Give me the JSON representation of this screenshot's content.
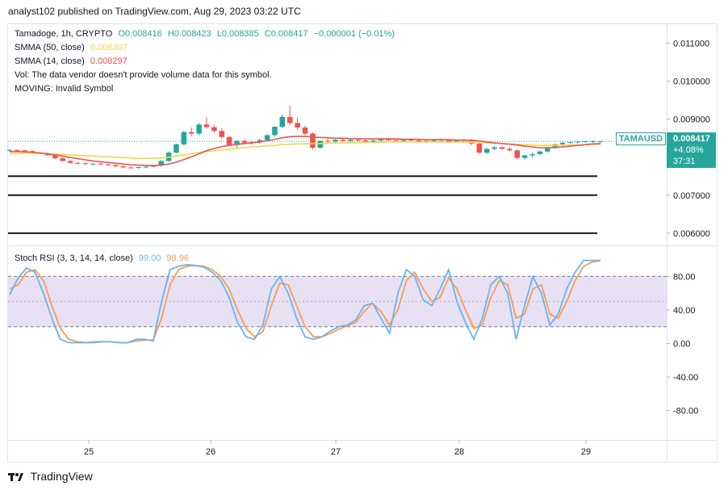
{
  "header": {
    "publisher_text": "analyst102 published on TradingView.com, Aug 29, 2023 03:22 UTC"
  },
  "legend": {
    "symbol_line": {
      "title": "Tamadoge, 1h, CRYPTO",
      "open": "O0.008416",
      "high": "H0.008423",
      "low": "L0.008385",
      "close": "C0.008417",
      "change": "−0.000001 (−0.01%)"
    },
    "sma50": {
      "label": "SMMA (50, close)",
      "value": "0.008307",
      "color": "#f2d64b"
    },
    "sma14": {
      "label": "SMMA (14, close)",
      "value": "0.008297",
      "color": "#ef5350"
    },
    "vol": "Vol: The data vendor doesn't provide volume data for this symbol.",
    "moving": "MOVING: Invalid Symbol",
    "stoch": {
      "label": "Stoch RSI (3, 3, 14, 14, close)",
      "k_value": "99.00",
      "d_value": "98.96",
      "k_color": "#64b5f6",
      "d_color": "#ff9a4d"
    }
  },
  "price_tag": {
    "symbol": "TAMAUSD",
    "price": "0.008417",
    "change": "+4.08%",
    "countdown": "37:31",
    "color": "#26a69a"
  },
  "footer": {
    "brand": "TradingView"
  },
  "chart_data": [
    {
      "type": "candlestick",
      "title": "Tamadoge, 1h, CRYPTO",
      "y_axis_ticks": [
        "0.011000",
        "0.010000",
        "0.009000",
        "0.007000",
        "0.006000"
      ],
      "ylim": [
        0.0057,
        0.0115
      ],
      "x_axis_ticks": [
        "25",
        "26",
        "27",
        "28",
        "29"
      ],
      "candles": [
        [
          0.00818,
          0.00822,
          0.00814,
          0.00819
        ],
        [
          0.00819,
          0.00821,
          0.00816,
          0.00818
        ],
        [
          0.00818,
          0.0082,
          0.00815,
          0.00816
        ],
        [
          0.00816,
          0.00818,
          0.0081,
          0.00812
        ],
        [
          0.00812,
          0.00814,
          0.00808,
          0.0081
        ],
        [
          0.0081,
          0.00812,
          0.00804,
          0.00805
        ],
        [
          0.00805,
          0.00807,
          0.00795,
          0.00797
        ],
        [
          0.00797,
          0.008,
          0.00788,
          0.0079
        ],
        [
          0.0079,
          0.00792,
          0.00783,
          0.00785
        ],
        [
          0.00785,
          0.00788,
          0.00781,
          0.00784
        ],
        [
          0.00784,
          0.00786,
          0.0078,
          0.00782
        ],
        [
          0.00782,
          0.00785,
          0.00779,
          0.00783
        ],
        [
          0.00783,
          0.00785,
          0.0078,
          0.00781
        ],
        [
          0.00781,
          0.00783,
          0.00777,
          0.00779
        ],
        [
          0.00779,
          0.00781,
          0.00774,
          0.00776
        ],
        [
          0.00776,
          0.00779,
          0.00772,
          0.00773
        ],
        [
          0.00773,
          0.00776,
          0.0077,
          0.00772
        ],
        [
          0.00772,
          0.00775,
          0.0077,
          0.00774
        ],
        [
          0.00774,
          0.00777,
          0.00771,
          0.00775
        ],
        [
          0.00775,
          0.0078,
          0.00773,
          0.00778
        ],
        [
          0.00778,
          0.00792,
          0.00775,
          0.0079
        ],
        [
          0.0079,
          0.00815,
          0.00788,
          0.00812
        ],
        [
          0.00812,
          0.00836,
          0.0081,
          0.00834
        ],
        [
          0.00834,
          0.0087,
          0.0083,
          0.00866
        ],
        [
          0.00866,
          0.00878,
          0.00855,
          0.00862
        ],
        [
          0.00862,
          0.0089,
          0.00858,
          0.00886
        ],
        [
          0.00886,
          0.00905,
          0.00875,
          0.00879
        ],
        [
          0.00879,
          0.00884,
          0.00865,
          0.00869
        ],
        [
          0.00869,
          0.00876,
          0.0085,
          0.00853
        ],
        [
          0.00853,
          0.00857,
          0.0083,
          0.00832
        ],
        [
          0.00832,
          0.00845,
          0.00825,
          0.00843
        ],
        [
          0.00843,
          0.00847,
          0.00835,
          0.00838
        ],
        [
          0.00838,
          0.00842,
          0.00833,
          0.0084
        ],
        [
          0.0084,
          0.00848,
          0.00836,
          0.00845
        ],
        [
          0.00845,
          0.0086,
          0.00843,
          0.00858
        ],
        [
          0.00858,
          0.00882,
          0.00855,
          0.0088
        ],
        [
          0.0088,
          0.00912,
          0.00876,
          0.00906
        ],
        [
          0.00906,
          0.00937,
          0.00885,
          0.0089
        ],
        [
          0.0089,
          0.00905,
          0.00872,
          0.00878
        ],
        [
          0.00878,
          0.00883,
          0.00858,
          0.00862
        ],
        [
          0.00862,
          0.00866,
          0.0082,
          0.00825
        ],
        [
          0.00825,
          0.00845,
          0.00822,
          0.00843
        ],
        [
          0.00843,
          0.00849,
          0.00838,
          0.00841
        ],
        [
          0.00841,
          0.00848,
          0.00838,
          0.00846
        ],
        [
          0.00846,
          0.0085,
          0.0084,
          0.00843
        ],
        [
          0.00843,
          0.00848,
          0.0084,
          0.00846
        ],
        [
          0.00846,
          0.00849,
          0.00841,
          0.00844
        ],
        [
          0.00844,
          0.00848,
          0.00838,
          0.00841
        ],
        [
          0.00841,
          0.00846,
          0.00838,
          0.00844
        ],
        [
          0.00844,
          0.00849,
          0.00842,
          0.00847
        ],
        [
          0.00847,
          0.00852,
          0.00843,
          0.00845
        ],
        [
          0.00845,
          0.00849,
          0.0084,
          0.00843
        ],
        [
          0.00843,
          0.00847,
          0.0084,
          0.00846
        ],
        [
          0.00846,
          0.0085,
          0.00842,
          0.00844
        ],
        [
          0.00844,
          0.00847,
          0.00838,
          0.0084
        ],
        [
          0.0084,
          0.00845,
          0.00837,
          0.00843
        ],
        [
          0.00843,
          0.00848,
          0.0084,
          0.00846
        ],
        [
          0.00846,
          0.00849,
          0.00842,
          0.00844
        ],
        [
          0.00844,
          0.00846,
          0.00839,
          0.00841
        ],
        [
          0.00841,
          0.00846,
          0.00839,
          0.00845
        ],
        [
          0.00845,
          0.00848,
          0.00841,
          0.00843
        ],
        [
          0.00843,
          0.00847,
          0.00832,
          0.00836
        ],
        [
          0.00836,
          0.0084,
          0.00808,
          0.00812
        ],
        [
          0.00812,
          0.00825,
          0.00808,
          0.00822
        ],
        [
          0.00822,
          0.0083,
          0.00818,
          0.00826
        ],
        [
          0.00826,
          0.0083,
          0.0082,
          0.00822
        ],
        [
          0.00822,
          0.00826,
          0.00815,
          0.00818
        ],
        [
          0.00818,
          0.00821,
          0.00795,
          0.00798
        ],
        [
          0.00798,
          0.00807,
          0.00794,
          0.00805
        ],
        [
          0.00805,
          0.00812,
          0.00799,
          0.00808
        ],
        [
          0.00808,
          0.00818,
          0.00806,
          0.00815
        ],
        [
          0.00815,
          0.00826,
          0.00812,
          0.00824
        ],
        [
          0.00824,
          0.00836,
          0.00822,
          0.00834
        ],
        [
          0.00834,
          0.00842,
          0.00828,
          0.00838
        ],
        [
          0.00838,
          0.00843,
          0.00834,
          0.0084
        ],
        [
          0.0084,
          0.00843,
          0.00836,
          0.00841
        ],
        [
          0.00841,
          0.00843,
          0.00838,
          0.00842
        ],
        [
          0.00842,
          0.00844,
          0.00838,
          0.00842
        ],
        [
          0.00842,
          0.00842,
          0.00838,
          0.00842
        ]
      ],
      "sma50": [
        0.00808,
        0.0081,
        0.0081,
        0.0081,
        0.0081,
        0.00809,
        0.00808,
        0.00807,
        0.00806,
        0.00805,
        0.00804,
        0.00803,
        0.00802,
        0.00801,
        0.008,
        0.00799,
        0.00798,
        0.00797,
        0.00797,
        0.00797,
        0.00798,
        0.008,
        0.00803,
        0.00806,
        0.00809,
        0.00812,
        0.00815,
        0.00817,
        0.00819,
        0.00821,
        0.00823,
        0.00825,
        0.00827,
        0.00828,
        0.0083,
        0.00831,
        0.00833,
        0.00834,
        0.00835,
        0.00835,
        0.00836,
        0.00836,
        0.00837,
        0.00837,
        0.00838,
        0.00838,
        0.00838,
        0.00839,
        0.00839,
        0.00839,
        0.0084,
        0.0084,
        0.0084,
        0.0084,
        0.0084,
        0.0084,
        0.0084,
        0.0084,
        0.0084,
        0.0084,
        0.0084,
        0.0084,
        0.00839,
        0.00838,
        0.00837,
        0.00836,
        0.00835,
        0.00834,
        0.00833,
        0.00832,
        0.00831,
        0.00831,
        0.00831,
        0.00831,
        0.00832,
        0.00832,
        0.00833,
        0.00834,
        0.00834
      ],
      "sma14": [
        0.00814,
        0.00815,
        0.00814,
        0.00813,
        0.00811,
        0.00809,
        0.00806,
        0.00803,
        0.00799,
        0.00796,
        0.00793,
        0.0079,
        0.00788,
        0.00786,
        0.00784,
        0.00782,
        0.0078,
        0.00779,
        0.00778,
        0.00778,
        0.00779,
        0.00782,
        0.00787,
        0.00794,
        0.00801,
        0.00809,
        0.00817,
        0.00823,
        0.00828,
        0.00831,
        0.00834,
        0.00836,
        0.00838,
        0.0084,
        0.00843,
        0.00847,
        0.00851,
        0.00854,
        0.00855,
        0.00855,
        0.00853,
        0.00852,
        0.00851,
        0.0085,
        0.0085,
        0.00849,
        0.00849,
        0.00848,
        0.00848,
        0.00848,
        0.00848,
        0.00848,
        0.00847,
        0.00847,
        0.00847,
        0.00846,
        0.00846,
        0.00846,
        0.00846,
        0.00845,
        0.00845,
        0.00845,
        0.00843,
        0.0084,
        0.00838,
        0.00836,
        0.00834,
        0.00832,
        0.00829,
        0.00827,
        0.00825,
        0.00825,
        0.00826,
        0.00827,
        0.00829,
        0.00831,
        0.00833,
        0.00835,
        0.00836
      ],
      "horizontal_lines": [
        0.0075,
        0.007,
        0.006
      ]
    },
    {
      "type": "line",
      "title": "Stoch RSI (3, 3, 14, 14, close)",
      "y_axis_ticks": [
        "80.00",
        "40.00",
        "0.00",
        "-40.00",
        "-80.00"
      ],
      "ylim": [
        -115,
        115
      ],
      "bands": {
        "upper": 80,
        "middle": 50,
        "lower": 20
      },
      "series": [
        {
          "name": "K",
          "values": [
            58,
            78,
            90,
            85,
            60,
            30,
            5,
            1,
            1,
            1,
            2,
            2,
            2,
            1,
            1,
            5,
            5,
            3,
            50,
            88,
            92,
            94,
            93,
            91,
            85,
            75,
            55,
            25,
            8,
            5,
            22,
            65,
            80,
            60,
            30,
            8,
            5,
            8,
            15,
            20,
            22,
            28,
            45,
            48,
            30,
            12,
            60,
            88,
            80,
            52,
            45,
            65,
            88,
            50,
            25,
            5,
            30,
            70,
            80,
            60,
            5,
            45,
            80,
            60,
            22,
            35,
            65,
            85,
            99,
            99,
            99
          ]
        },
        {
          "name": "D",
          "values": [
            65,
            70,
            85,
            88,
            75,
            45,
            18,
            5,
            2,
            1,
            1,
            2,
            2,
            1,
            1,
            3,
            4,
            4,
            30,
            70,
            88,
            92,
            93,
            92,
            88,
            80,
            65,
            40,
            18,
            8,
            14,
            45,
            72,
            70,
            45,
            20,
            8,
            8,
            12,
            17,
            21,
            25,
            38,
            48,
            38,
            22,
            40,
            75,
            85,
            65,
            50,
            55,
            78,
            65,
            40,
            18,
            22,
            55,
            75,
            70,
            30,
            35,
            65,
            70,
            35,
            30,
            50,
            75,
            92,
            97,
            99
          ]
        }
      ],
      "ylabel": ""
    }
  ]
}
